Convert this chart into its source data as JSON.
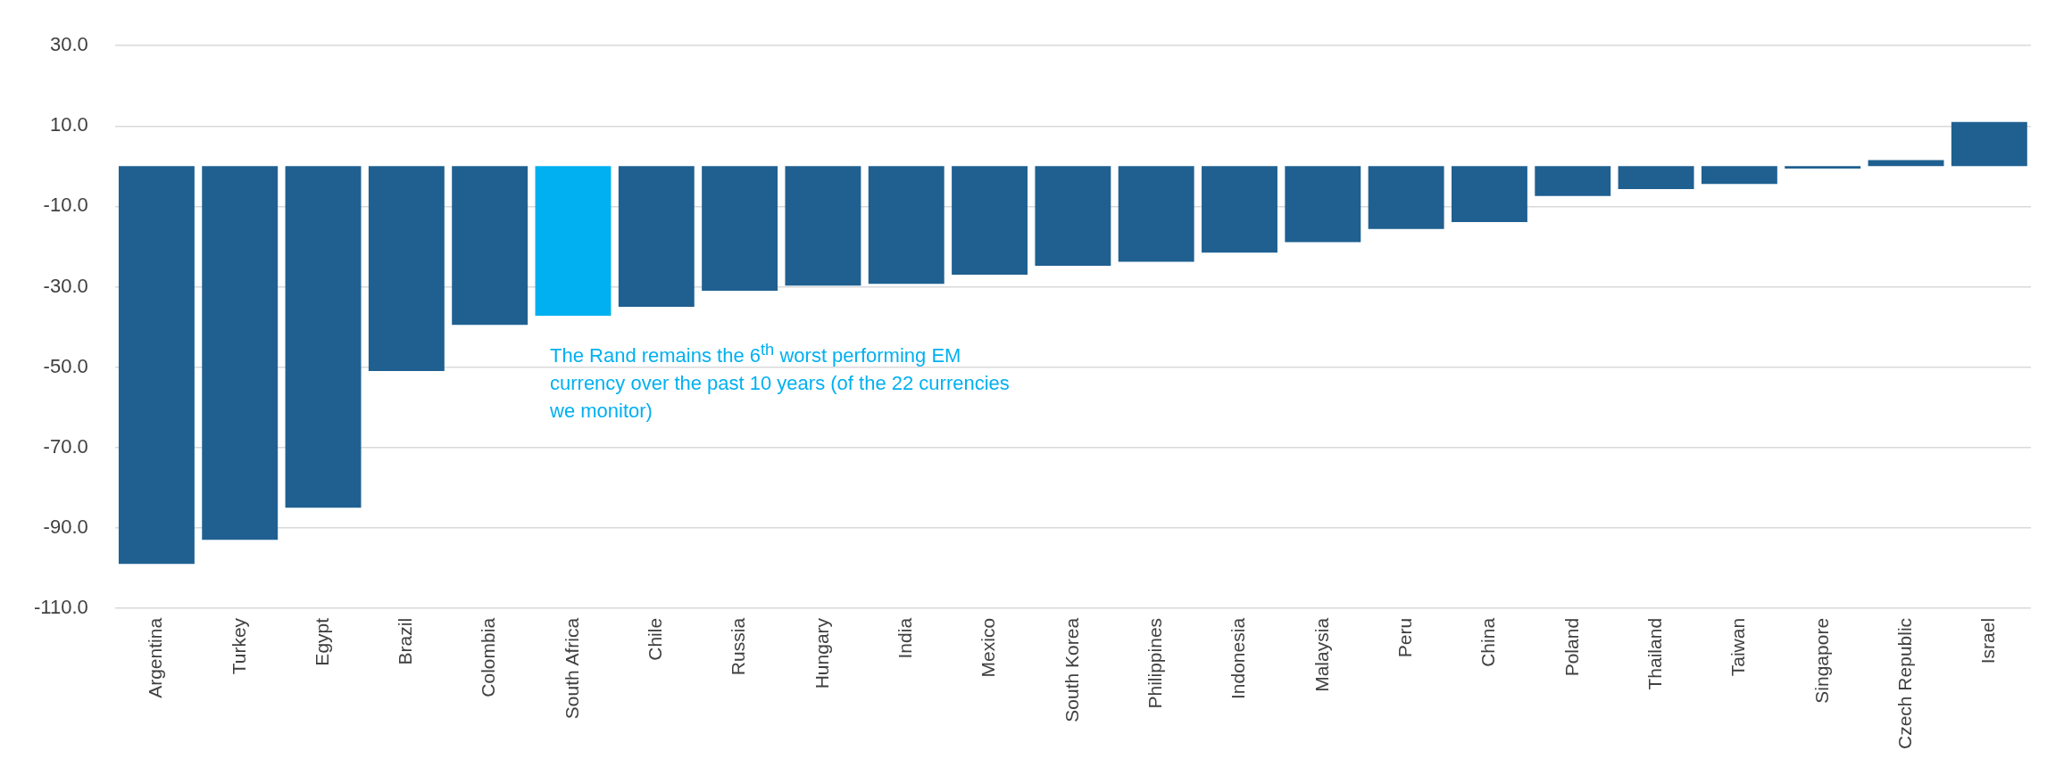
{
  "chart_data": {
    "type": "bar",
    "categories": [
      "Argentina",
      "Turkey",
      "Egypt",
      "Brazil",
      "Colombia",
      "South Africa",
      "Chile",
      "Russia",
      "Hungary",
      "India",
      "Mexico",
      "South Korea",
      "Philippines",
      "Indonesia",
      "Malaysia",
      "Peru",
      "China",
      "Poland",
      "Thailand",
      "Taiwan",
      "Singapore",
      "Czech Republic",
      "Israel"
    ],
    "values": [
      -99,
      -93,
      -85,
      -51,
      -39.5,
      -37.2,
      -35,
      -31,
      -29.7,
      -29.3,
      -27,
      -24.8,
      -23.8,
      -21.5,
      -18.9,
      -15.6,
      -13.9,
      -7.4,
      -5.7,
      -4.4,
      -0.6,
      1.5,
      11
    ],
    "colors": [
      "#1f6091",
      "#1f6091",
      "#1f6091",
      "#1f6091",
      "#1f6091",
      "#00b0f0",
      "#1f6091",
      "#1f6091",
      "#1f6091",
      "#1f6091",
      "#1f6091",
      "#1f6091",
      "#1f6091",
      "#1f6091",
      "#1f6091",
      "#1f6091",
      "#1f6091",
      "#1f6091",
      "#1f6091",
      "#1f6091",
      "#1f6091",
      "#1f6091",
      "#1f6091"
    ],
    "ylim": [
      -110,
      30
    ],
    "yticks": [
      {
        "value": 30,
        "label": "30.0"
      },
      {
        "value": 10,
        "label": "10.0"
      },
      {
        "value": -10,
        "label": "-10.0"
      },
      {
        "value": -30,
        "label": "-30.0"
      },
      {
        "value": -50,
        "label": "-50.0"
      },
      {
        "value": -70,
        "label": "-70.0"
      },
      {
        "value": -90,
        "label": "-90.0"
      },
      {
        "value": -110,
        "label": "-110.0"
      }
    ],
    "grid": "y",
    "legend": false,
    "annotations": [
      "The Rand remains the 6$^{th}$ worst performing EM currency over the past 10 years (of the 22 currencies we monitor)"
    ]
  }
}
